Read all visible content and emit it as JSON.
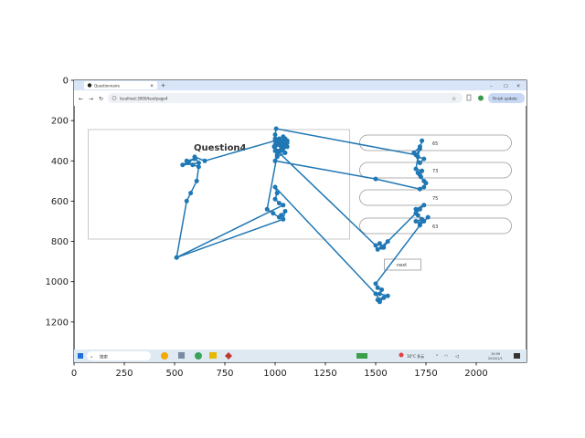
{
  "chart_data": {
    "type": "scatter",
    "title": "",
    "xlabel": "",
    "ylabel": "",
    "xlim": [
      0,
      2250
    ],
    "ylim": [
      1400,
      0
    ],
    "x_ticks": [
      0,
      250,
      500,
      750,
      1000,
      1250,
      1500,
      1750,
      2000
    ],
    "y_ticks": [
      0,
      200,
      400,
      600,
      800,
      1000,
      1200
    ],
    "grid": false,
    "series_color": "#1f77b4",
    "background_screenshot": {
      "browser_tab_title": "Questionnaire",
      "url": "localhost:3000/test/page4",
      "update_button": "Finish update",
      "question_title": "Question4",
      "options": [
        "65",
        "73",
        "75",
        "63"
      ],
      "next_label": "next",
      "taskbar_search": "搜索",
      "weather": "16°C 多云",
      "clock_time": "15:09",
      "clock_date": "2024/1/1"
    },
    "series": [
      {
        "x": [
          1020,
          1000,
          1060,
          1040,
          1000,
          1010,
          1030,
          995,
          1050,
          1010,
          1000,
          1005,
          1700,
          1720,
          1730,
          1710,
          1740,
          1720,
          1690,
          1720,
          1700,
          1730,
          1710,
          1720,
          1725,
          1740,
          1750,
          1740,
          1720,
          1500,
          1000,
          1010,
          1050,
          1030,
          1000,
          1020,
          1040,
          1060,
          1030,
          1010,
          960,
          990,
          1020,
          1030,
          1050,
          1040,
          510,
          560,
          580,
          610,
          620,
          570,
          590,
          560,
          600,
          540,
          620,
          600,
          650,
          1000,
          1020,
          1040,
          1060,
          1040,
          1010,
          1500,
          1520,
          1540,
          1560,
          1510,
          1530,
          1700,
          1720,
          1740,
          1700,
          1710,
          1730,
          1700,
          1720,
          1740,
          1760,
          1720,
          1500,
          1510,
          1530,
          1520,
          1560,
          1510,
          1520,
          1540,
          1520,
          1500,
          1000,
          1010,
          1000,
          1020,
          1040,
          510
        ],
        "y": [
          320,
          290,
          300,
          340,
          350,
          320,
          310,
          330,
          290,
          300,
          270,
          240,
          370,
          340,
          300,
          380,
          390,
          410,
          360,
          330,
          440,
          450,
          460,
          470,
          480,
          500,
          510,
          530,
          540,
          490,
          400,
          380,
          360,
          330,
          320,
          300,
          310,
          330,
          350,
          370,
          640,
          660,
          680,
          670,
          650,
          690,
          880,
          600,
          560,
          500,
          430,
          410,
          420,
          400,
          390,
          420,
          410,
          380,
          400,
          300,
          290,
          280,
          310,
          330,
          350,
          820,
          810,
          830,
          800,
          840,
          830,
          660,
          640,
          620,
          640,
          670,
          690,
          700,
          710,
          700,
          680,
          720,
          1010,
          1030,
          1040,
          1060,
          1070,
          1090,
          1100,
          1080,
          1090,
          1060,
          530,
          560,
          590,
          610,
          620,
          880
        ]
      }
    ]
  }
}
